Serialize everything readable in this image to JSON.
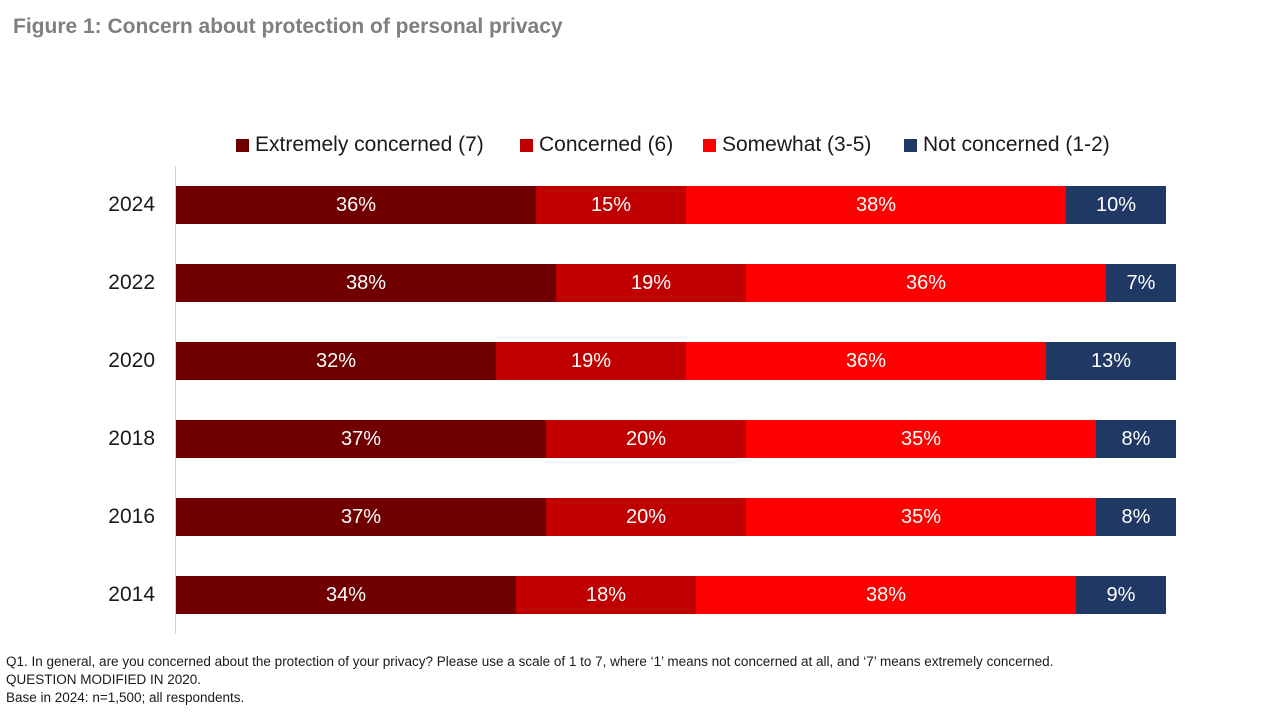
{
  "title": "Figure 1: Concern about protection of personal privacy",
  "footnote": {
    "line1": "Q1. In general, are you concerned about the protection of your privacy? Please use a scale of 1 to 7, where ‘1’ means not concerned at all, and ‘7’ means extremely concerned.",
    "line2": "QUESTION MODIFIED IN 2020.",
    "line3": "Base in 2024: n=1,500; all respondents."
  },
  "chart_data": {
    "type": "bar",
    "orientation": "horizontal",
    "stacked": true,
    "title": "Figure 1: Concern about protection of personal privacy",
    "xlabel": "",
    "ylabel": "",
    "xlim": [
      0,
      100
    ],
    "grid": false,
    "legend_position": "top",
    "value_format": "percent",
    "categories": [
      "2024",
      "2022",
      "2020",
      "2018",
      "2016",
      "2014"
    ],
    "series": [
      {
        "name": "Extremely concerned (7)",
        "color": "#700000",
        "values": [
          36,
          38,
          32,
          37,
          37,
          34
        ]
      },
      {
        "name": "Concerned (6)",
        "color": "#c00000",
        "values": [
          15,
          19,
          19,
          20,
          20,
          18
        ]
      },
      {
        "name": "Somewhat (3-5)",
        "color": "#ff0000",
        "values": [
          38,
          36,
          36,
          35,
          35,
          38
        ]
      },
      {
        "name": "Not concerned (1-2)",
        "color": "#203864",
        "values": [
          10,
          7,
          13,
          8,
          8,
          9
        ]
      }
    ]
  }
}
